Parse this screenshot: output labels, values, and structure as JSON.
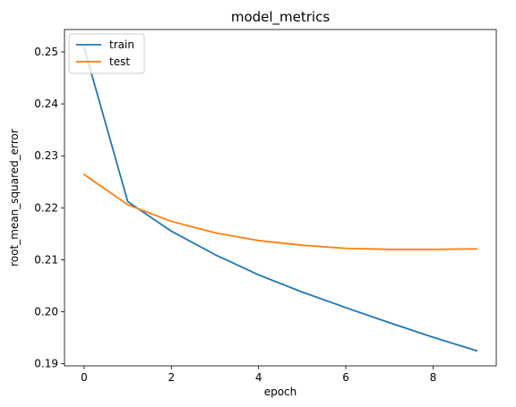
{
  "chart_data": {
    "type": "line",
    "title": "model_metrics",
    "xlabel": "epoch",
    "ylabel": "root_mean_squared_error",
    "x": [
      0,
      1,
      2,
      3,
      4,
      5,
      6,
      7,
      8,
      9
    ],
    "series": [
      {
        "name": "train",
        "color": "#1f77b4",
        "values": [
          0.2508,
          0.2212,
          0.2155,
          0.211,
          0.2071,
          0.2038,
          0.2008,
          0.1979,
          0.1951,
          0.1925
        ]
      },
      {
        "name": "test",
        "color": "#ff7f0e",
        "values": [
          0.2264,
          0.2206,
          0.2174,
          0.2152,
          0.2137,
          0.2128,
          0.2122,
          0.212,
          0.212,
          0.2121
        ]
      }
    ],
    "xlim": [
      -0.45,
      9.45
    ],
    "ylim": [
      0.1896,
      0.2543
    ],
    "xticks": [
      0,
      2,
      4,
      6,
      8
    ],
    "xtick_labels": [
      "0",
      "2",
      "4",
      "6",
      "8"
    ],
    "yticks": [
      0.19,
      0.2,
      0.21,
      0.22,
      0.23,
      0.24,
      0.25
    ],
    "ytick_labels": [
      "0.19",
      "0.20",
      "0.21",
      "0.22",
      "0.23",
      "0.24",
      "0.25"
    ],
    "grid": false,
    "legend_position": "top-left"
  }
}
